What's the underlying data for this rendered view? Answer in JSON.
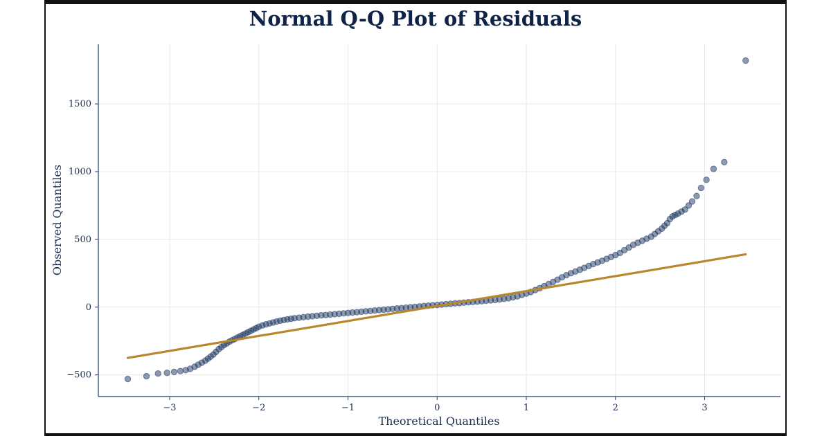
{
  "chart_data": {
    "type": "scatter",
    "title": "Normal Q-Q Plot of Residuals",
    "xlabel": "Theoretical Quantiles",
    "ylabel": "Observed Quantiles",
    "xlim": [
      -3.8,
      3.85
    ],
    "ylim": [
      -660,
      1940
    ],
    "x_ticks": [
      -3,
      -2,
      -1,
      0,
      1,
      2,
      3
    ],
    "x_tick_labels": [
      "−3",
      "−2",
      "−1",
      "0",
      "1",
      "2",
      "3"
    ],
    "y_ticks": [
      -500,
      0,
      500,
      1000,
      1500
    ],
    "y_tick_labels": [
      "−500",
      "0",
      "500",
      "1000",
      "1500"
    ],
    "grid": true,
    "series": [
      {
        "kind": "points",
        "color": "#1b3560",
        "x": [
          -3.47,
          -3.26,
          -3.13,
          -3.03,
          -2.95,
          -2.88,
          -2.82,
          -2.77,
          -2.72,
          -2.68,
          -2.64,
          -2.6,
          -2.57,
          -2.54,
          -2.51,
          -2.48,
          -2.45,
          -2.42,
          -2.39,
          -2.36,
          -2.33,
          -2.3,
          -2.27,
          -2.24,
          -2.21,
          -2.18,
          -2.15,
          -2.12,
          -2.09,
          -2.06,
          -2.03,
          -2.0,
          -1.96,
          -1.92,
          -1.88,
          -1.84,
          -1.8,
          -1.76,
          -1.72,
          -1.68,
          -1.64,
          -1.6,
          -1.55,
          -1.5,
          -1.45,
          -1.4,
          -1.35,
          -1.3,
          -1.25,
          -1.2,
          -1.15,
          -1.1,
          -1.05,
          -1.0,
          -0.95,
          -0.9,
          -0.85,
          -0.8,
          -0.75,
          -0.7,
          -0.65,
          -0.6,
          -0.55,
          -0.5,
          -0.45,
          -0.4,
          -0.35,
          -0.3,
          -0.25,
          -0.2,
          -0.15,
          -0.1,
          -0.05,
          0.0,
          0.05,
          0.1,
          0.15,
          0.2,
          0.25,
          0.3,
          0.35,
          0.4,
          0.45,
          0.5,
          0.55,
          0.6,
          0.65,
          0.7,
          0.75,
          0.8,
          0.85,
          0.9,
          0.95,
          1.0,
          1.05,
          1.1,
          1.15,
          1.2,
          1.25,
          1.3,
          1.35,
          1.4,
          1.45,
          1.5,
          1.55,
          1.6,
          1.65,
          1.7,
          1.75,
          1.8,
          1.85,
          1.9,
          1.95,
          2.0,
          2.05,
          2.1,
          2.15,
          2.2,
          2.25,
          2.3,
          2.35,
          2.4,
          2.44,
          2.48,
          2.52,
          2.55,
          2.58,
          2.61,
          2.64,
          2.67,
          2.7,
          2.74,
          2.78,
          2.82,
          2.86,
          2.91,
          2.96,
          3.02,
          3.1,
          3.22,
          3.46
        ],
        "y": [
          -530,
          -510,
          -490,
          -485,
          -478,
          -472,
          -465,
          -455,
          -440,
          -425,
          -410,
          -395,
          -380,
          -365,
          -350,
          -330,
          -310,
          -295,
          -280,
          -268,
          -255,
          -245,
          -235,
          -225,
          -215,
          -205,
          -195,
          -185,
          -175,
          -165,
          -155,
          -145,
          -135,
          -127,
          -120,
          -113,
          -106,
          -100,
          -95,
          -90,
          -86,
          -82,
          -78,
          -74,
          -70,
          -67,
          -64,
          -61,
          -58,
          -55,
          -52,
          -49,
          -46,
          -43,
          -40,
          -37,
          -34,
          -31,
          -28,
          -25,
          -22,
          -19,
          -16,
          -13,
          -10,
          -7,
          -4,
          -1,
          2,
          5,
          8,
          11,
          14,
          16,
          19,
          22,
          25,
          28,
          30,
          33,
          36,
          38,
          41,
          44,
          47,
          50,
          53,
          57,
          61,
          66,
          72,
          80,
          90,
          100,
          112,
          126,
          140,
          155,
          170,
          186,
          203,
          220,
          236,
          250,
          263,
          276,
          290,
          304,
          318,
          330,
          342,
          356,
          370,
          384,
          400,
          420,
          440,
          460,
          475,
          490,
          505,
          520,
          540,
          560,
          580,
          600,
          620,
          650,
          670,
          680,
          690,
          705,
          720,
          750,
          780,
          820,
          880,
          940,
          1020,
          1070,
          1820
        ]
      },
      {
        "kind": "reference-line",
        "color": "#b8862e",
        "x": [
          -3.47,
          3.46
        ],
        "y": [
          -375,
          390
        ]
      }
    ]
  }
}
